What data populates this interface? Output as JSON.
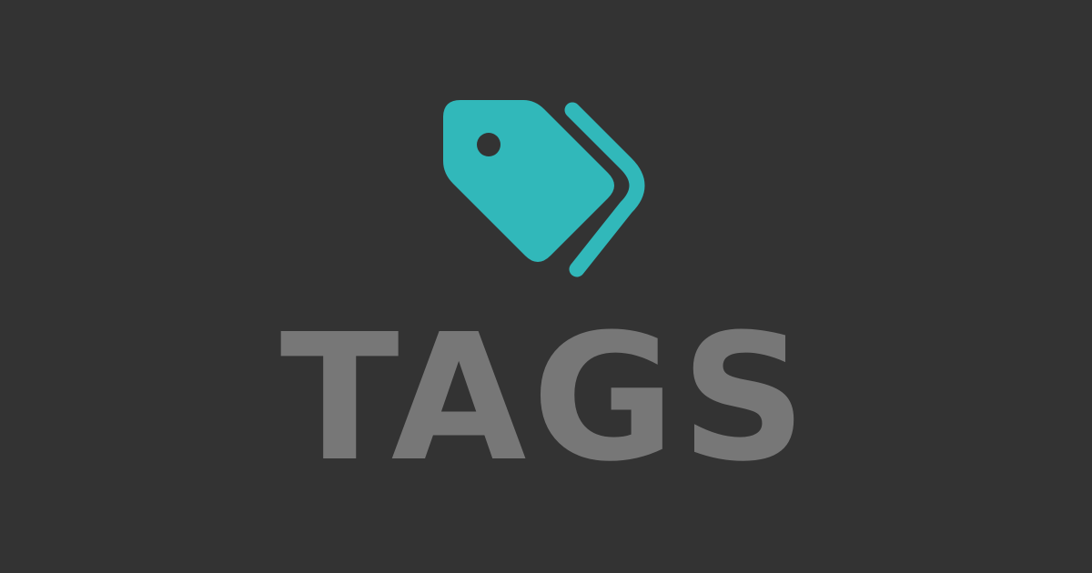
{
  "colors": {
    "background": "#333333",
    "icon_accent": "#31B8BA",
    "title_text": "#777777"
  },
  "icon": {
    "name": "tags-icon"
  },
  "title": {
    "text": "TAGS"
  }
}
